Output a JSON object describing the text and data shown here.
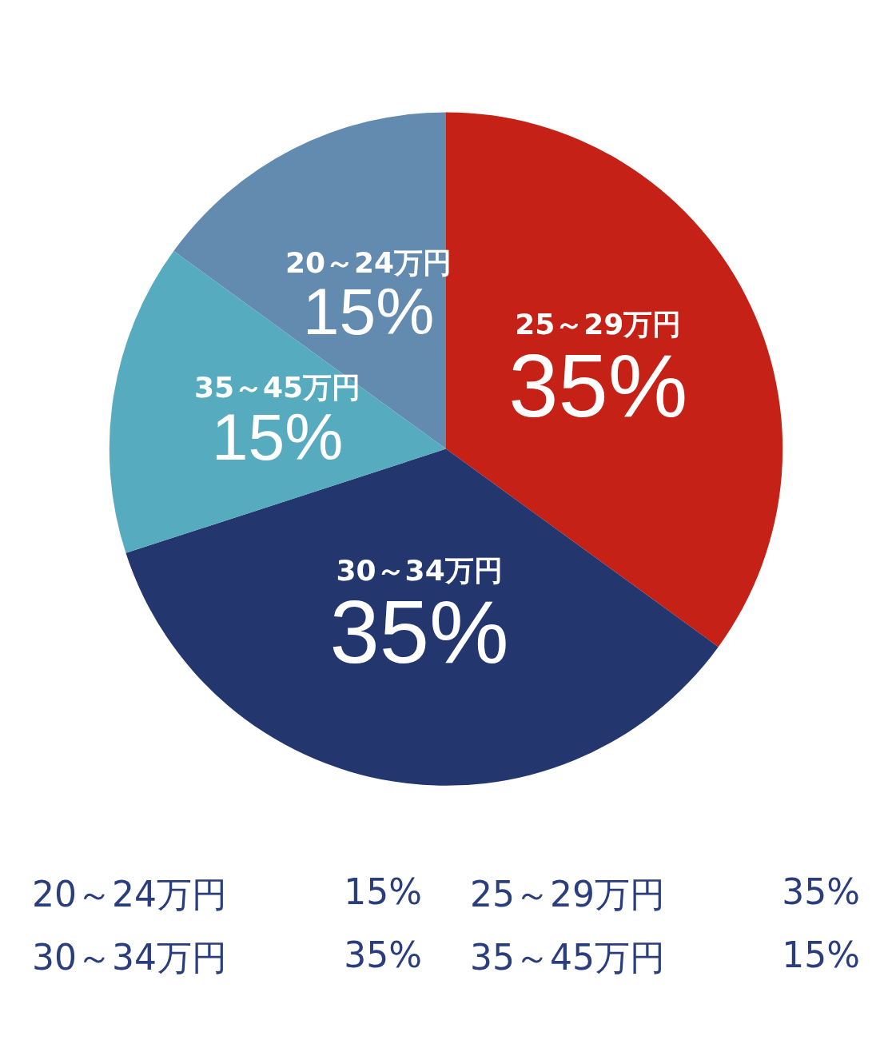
{
  "chart_data": {
    "type": "pie",
    "categories": [
      "20～24万円",
      "25～29万円",
      "30～34万円",
      "35～45万円"
    ],
    "values": [
      15,
      35,
      35,
      15
    ],
    "colors": [
      "#638aaf",
      "#c62116",
      "#23366e",
      "#57abbe"
    ],
    "value_labels": [
      "15%",
      "35%",
      "35%",
      "15%"
    ],
    "legend": false
  }
}
